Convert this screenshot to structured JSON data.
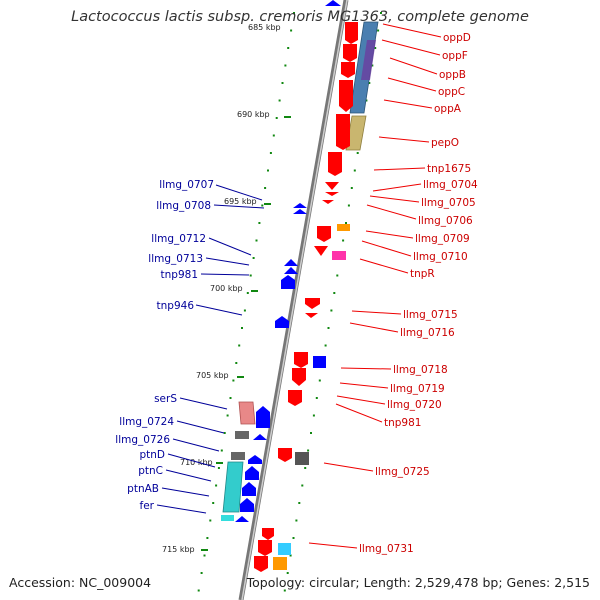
{
  "title": "Lactococcus lactis subsp. cremoris MG1363, complete genome",
  "footer": {
    "accession": "Accession: NC_009004",
    "summary": "Topology: circular; Length: 2,529,478 bp; Genes: 2,515"
  },
  "kbp_marks": [
    "685 kbp",
    "690 kbp",
    "695 kbp",
    "700 kbp",
    "705 kbp",
    "710 kbp",
    "715 kbp"
  ],
  "right_labels": [
    "oppD",
    "oppF",
    "oppB",
    "oppC",
    "oppA",
    "pepO",
    "tnp1675",
    "llmg_0704",
    "llmg_0705",
    "llmg_0706",
    "llmg_0709",
    "llmg_0710",
    "tnpR",
    "llmg_0715",
    "llmg_0716",
    "llmg_0718",
    "llmg_0719",
    "llmg_0720",
    "tnp981",
    "llmg_0725",
    "llmg_0731"
  ],
  "left_labels": [
    "llmg_0707",
    "llmg_0708",
    "llmg_0712",
    "llmg_0713",
    "tnp981",
    "tnp946",
    "serS",
    "llmg_0724",
    "llmg_0726",
    "ptnD",
    "ptnC",
    "ptnAB",
    "fer"
  ],
  "colors": {
    "forward_gene": "#ff0000",
    "reverse_gene": "#0000ff",
    "right_label": "#cc0000",
    "left_label": "#000099",
    "backbone": "#888888",
    "tick": "#118811",
    "opp_operon": "#4477aa",
    "pepO_block": "#c8b46e",
    "ptn_block": "#33cccc"
  }
}
